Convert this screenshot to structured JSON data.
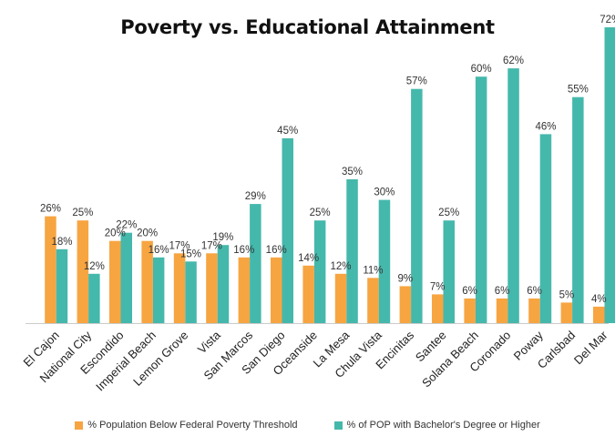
{
  "chart_data": {
    "type": "bar",
    "title": "Poverty vs. Educational Attainment",
    "xlabel": "",
    "ylabel": "",
    "ylim": [
      0,
      72
    ],
    "grid": false,
    "legend_placement": "bottom",
    "value_suffix": "%",
    "categories": [
      "El Cajon",
      "National City",
      "Escondido",
      "Imperial Beach",
      "Lemon Grove",
      "Vista",
      "San Marcos",
      "San Diego",
      "Oceanside",
      "La Mesa",
      "Chula Vista",
      "Encinitas",
      "Santee",
      "Solana Beach",
      "Coronado",
      "Poway",
      "Carlsbad",
      "Del Mar"
    ],
    "series": [
      {
        "name": "% Population Below Federal Poverty Threshold",
        "color": "#F7A541",
        "values": [
          26,
          25,
          20,
          20,
          17,
          17,
          16,
          16,
          14,
          12,
          11,
          9,
          7,
          6,
          6,
          6,
          5,
          4
        ]
      },
      {
        "name": "% of POP with Bachelor's Degree or Higher",
        "color": "#45B8AC",
        "values": [
          18,
          12,
          22,
          16,
          15,
          19,
          29,
          45,
          25,
          35,
          30,
          57,
          25,
          60,
          62,
          46,
          55,
          72
        ]
      }
    ]
  }
}
